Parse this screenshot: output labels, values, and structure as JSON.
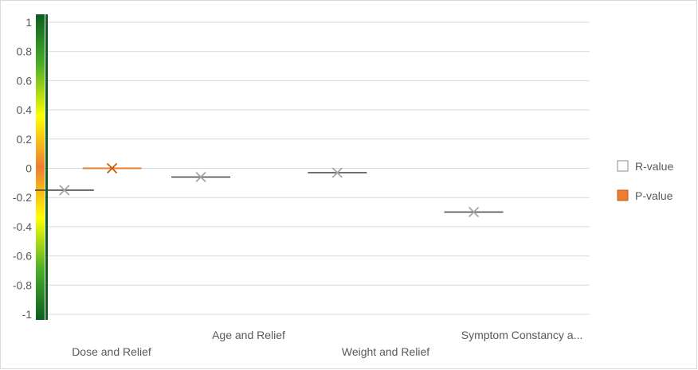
{
  "chart_data": {
    "type": "box",
    "categories": [
      "Dose and Relief",
      "Age and Relief",
      "Weight and Relief",
      "Symptom Constancy a..."
    ],
    "series": [
      {
        "name": "R-value",
        "values": [
          -0.15,
          -0.06,
          -0.03,
          -0.3
        ],
        "color": "#ffffff",
        "stroke": "#8c8c8c"
      },
      {
        "name": "P-value",
        "values": [
          0.0,
          null,
          null,
          null
        ],
        "color": "#ed7d31",
        "stroke": "#c55a11"
      }
    ],
    "yticks": [
      "1",
      "0.8",
      "0.6",
      "0.4",
      "0.2",
      "0",
      "-0.2",
      "-0.4",
      "-0.6",
      "-0.8",
      "-1"
    ],
    "ylim": [
      -1,
      1
    ],
    "grid": true,
    "legend": "right",
    "colorbar": {
      "colors": [
        "#0b5d1e",
        "#4caf28",
        "#ffff00",
        "#ed7d31",
        "#ffff00",
        "#4caf28",
        "#0b5d1e"
      ]
    }
  }
}
